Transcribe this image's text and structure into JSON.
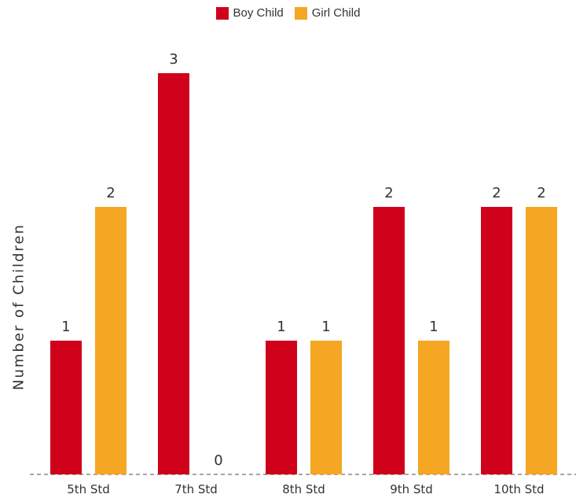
{
  "chart_data": {
    "type": "bar",
    "title": "",
    "xlabel": "",
    "ylabel": "Number of Children",
    "categories": [
      "5th Std",
      "7th Std",
      "8th Std",
      "9th Std",
      "10th Std"
    ],
    "series": [
      {
        "name": "Boy Child",
        "values": [
          1,
          3,
          1,
          2,
          2
        ],
        "color": "#D0021B"
      },
      {
        "name": "Girl Child",
        "values": [
          2,
          0,
          1,
          1,
          2
        ],
        "color": "#F5A623"
      }
    ],
    "ylim": [
      0,
      3
    ],
    "grid": false,
    "legend_position": "top-center"
  }
}
